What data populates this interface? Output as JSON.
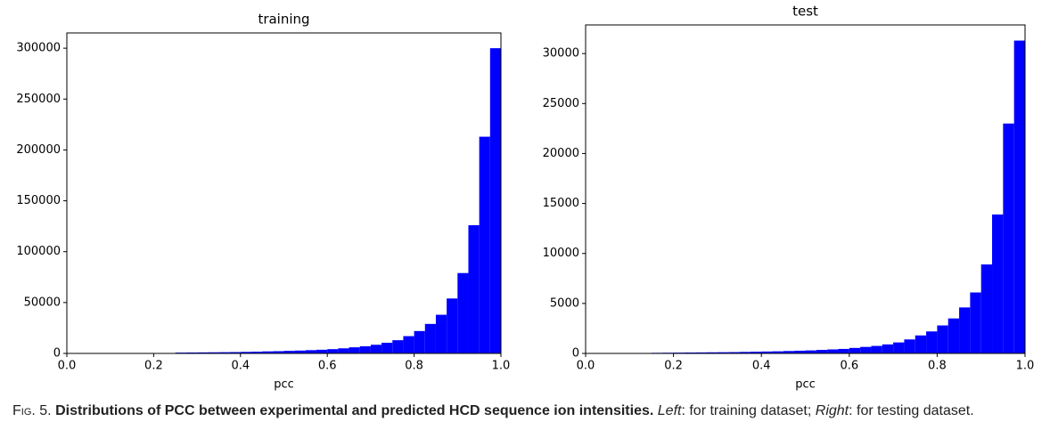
{
  "chart_data": [
    {
      "type": "histogram",
      "title": "training",
      "xlabel": "pcc",
      "color": "#0000ff",
      "bins": [
        0,
        0.025,
        0.05,
        0.075,
        0.1,
        0.125,
        0.15,
        0.175,
        0.2,
        0.225,
        0.25,
        0.275,
        0.3,
        0.325,
        0.35,
        0.375,
        0.4,
        0.425,
        0.45,
        0.475,
        0.5,
        0.525,
        0.55,
        0.575,
        0.6,
        0.625,
        0.65,
        0.675,
        0.7,
        0.725,
        0.75,
        0.775,
        0.8,
        0.825,
        0.85,
        0.875,
        0.9,
        0.925,
        0.95,
        0.975,
        1.0
      ],
      "values": [
        0,
        0,
        0,
        0,
        0,
        0,
        0,
        0,
        0,
        0,
        800,
        900,
        1000,
        1100,
        1200,
        1300,
        1500,
        1700,
        2000,
        2200,
        2500,
        2800,
        3200,
        3600,
        4200,
        5000,
        6000,
        7000,
        8500,
        10500,
        13000,
        17000,
        22000,
        29000,
        38000,
        54000,
        79000,
        126000,
        213000,
        300000
      ],
      "xlim": [
        0,
        1
      ],
      "ylim": [
        0,
        315000
      ],
      "xticks": [
        {
          "value": 0,
          "label": "0.0"
        },
        {
          "value": 0.2,
          "label": "0.2"
        },
        {
          "value": 0.4,
          "label": "0.4"
        },
        {
          "value": 0.6,
          "label": "0.6"
        },
        {
          "value": 0.8,
          "label": "0.8"
        },
        {
          "value": 1,
          "label": "1.0"
        }
      ],
      "yticks": [
        0,
        50000,
        100000,
        150000,
        200000,
        250000,
        300000
      ]
    },
    {
      "type": "histogram",
      "title": "test",
      "xlabel": "pcc",
      "color": "#0000ff",
      "bins": [
        0,
        0.025,
        0.05,
        0.075,
        0.1,
        0.125,
        0.15,
        0.175,
        0.2,
        0.225,
        0.25,
        0.275,
        0.3,
        0.325,
        0.35,
        0.375,
        0.4,
        0.425,
        0.45,
        0.475,
        0.5,
        0.525,
        0.55,
        0.575,
        0.6,
        0.625,
        0.65,
        0.675,
        0.7,
        0.725,
        0.75,
        0.775,
        0.8,
        0.825,
        0.85,
        0.875,
        0.9,
        0.925,
        0.95,
        0.975,
        1.0
      ],
      "values": [
        0,
        0,
        0,
        0,
        0,
        0,
        60,
        70,
        80,
        90,
        100,
        110,
        120,
        130,
        150,
        170,
        190,
        210,
        240,
        270,
        300,
        350,
        400,
        450,
        550,
        650,
        750,
        900,
        1100,
        1400,
        1800,
        2200,
        2800,
        3500,
        4600,
        6100,
        8900,
        13900,
        23000,
        31300
      ],
      "xlim": [
        0,
        1
      ],
      "ylim": [
        0,
        32865
      ],
      "xticks": [
        {
          "value": 0,
          "label": "0.0"
        },
        {
          "value": 0.2,
          "label": "0.2"
        },
        {
          "value": 0.4,
          "label": "0.4"
        },
        {
          "value": 0.6,
          "label": "0.6"
        },
        {
          "value": 0.8,
          "label": "0.8"
        },
        {
          "value": 1,
          "label": "1.0"
        }
      ],
      "yticks": [
        0,
        5000,
        10000,
        15000,
        20000,
        25000,
        30000
      ]
    }
  ],
  "caption": {
    "figure": "Fig. 5.",
    "title": "Distributions of PCC between experimental and predicted HCD sequence ion intensities.",
    "left": "Left",
    "left_text": ": for training dataset;",
    "right": "Right",
    "right_text": ": for testing dataset."
  }
}
